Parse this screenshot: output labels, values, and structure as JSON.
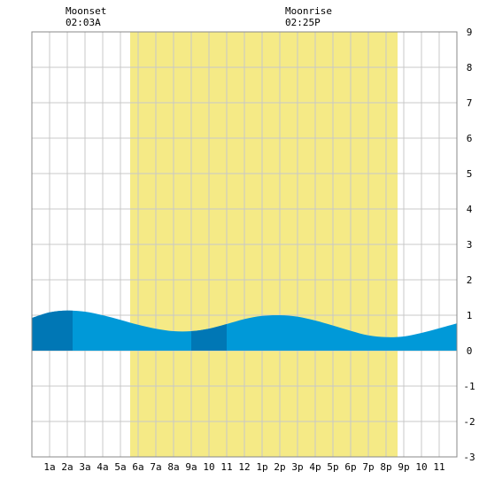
{
  "chart_data": {
    "type": "area",
    "title": "",
    "xlabel": "",
    "ylabel": "",
    "x_ticks": [
      "1a",
      "2a",
      "3a",
      "4a",
      "5a",
      "6a",
      "7a",
      "8a",
      "9a",
      "10",
      "11",
      "12",
      "1p",
      "2p",
      "3p",
      "4p",
      "5p",
      "6p",
      "7p",
      "8p",
      "9p",
      "10",
      "11"
    ],
    "x_range_hours": [
      0,
      24
    ],
    "ylim": [
      -3,
      9
    ],
    "y_ticks": [
      "-3",
      "-2",
      "-1",
      "0",
      "1",
      "2",
      "3",
      "4",
      "5",
      "6",
      "7",
      "8",
      "9"
    ],
    "y_axis_side": "right",
    "grid": true,
    "series": [
      {
        "x_hours": [
          0,
          1,
          2,
          3,
          4,
          5,
          6,
          7,
          8,
          9,
          10,
          11,
          12,
          13,
          14,
          15,
          16,
          17,
          18,
          19,
          20,
          21,
          22,
          23,
          24
        ],
        "values": [
          0.92,
          1.08,
          1.13,
          1.1,
          1.0,
          0.87,
          0.73,
          0.62,
          0.55,
          0.55,
          0.62,
          0.75,
          0.89,
          0.98,
          1.0,
          0.96,
          0.85,
          0.71,
          0.56,
          0.43,
          0.38,
          0.4,
          0.5,
          0.63,
          0.77
        ]
      }
    ],
    "daylight_hours": [
      5.55,
      20.65
    ],
    "dark_band_hours": [
      [
        0,
        2.3
      ],
      [
        9.0,
        11.0
      ],
      [
        14.0,
        14.0
      ]
    ],
    "annotations": [
      {
        "label": "Moonset",
        "time": "02:03A",
        "hour": 2.05
      },
      {
        "label": "Moonrise",
        "time": "02:25P",
        "hour": 14.42
      }
    ],
    "colors": {
      "daylight": "#f5ea86",
      "water": "#0099d8",
      "water_dark": "#0077b5",
      "grid": "#c8c8c8",
      "border": "#888888"
    }
  }
}
